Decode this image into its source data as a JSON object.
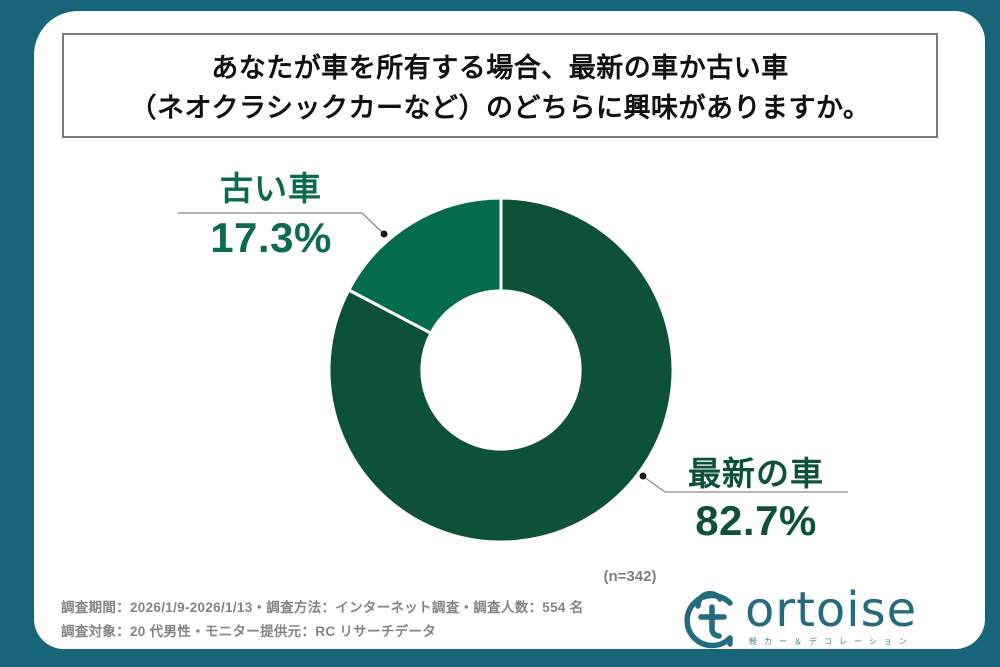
{
  "theme": {
    "frame_color": "#166579",
    "panel_color": "#FFFFFF",
    "title_text_color": "#111111",
    "gray_text_color": "#848484",
    "logo_color": "#256B80"
  },
  "title": {
    "line1": "あなたが車を所有する場合、最新の車か古い車",
    "line2": "（ネオクラシックカーなど）のどちらに興味がありますか。"
  },
  "chart_data": {
    "type": "pie",
    "subtype": "donut",
    "title": "あなたが車を所有する場合、最新の車か古い車（ネオクラシックカーなど）のどちらに興味がありますか。",
    "labels": [
      "最新の車",
      "古い車"
    ],
    "values": [
      82.7,
      17.3
    ],
    "unit": "%",
    "percent_labels": [
      "82.7%",
      "17.3%"
    ],
    "colors": [
      "#0D5136",
      "#046B4E"
    ],
    "start_angle_deg": 0,
    "direction": "clockwise",
    "donut_hole_ratio": 0.46,
    "segment_border_color": "#FFFFFF",
    "n_label": "(n=342)",
    "legend_position": "callout-labels"
  },
  "footer": {
    "line1": "調査期間：2026/1/9-2026/1/13・調査方法：インターネット調査・調査人数：554 名",
    "line2": "調査対象：20 代男性・モニター提供元：RC リサーチデータ"
  },
  "logo": {
    "icon": "tortoise-cloud-t-icon",
    "wordmark": "ortoise",
    "tagline": "軽カー＆デコレーション"
  }
}
